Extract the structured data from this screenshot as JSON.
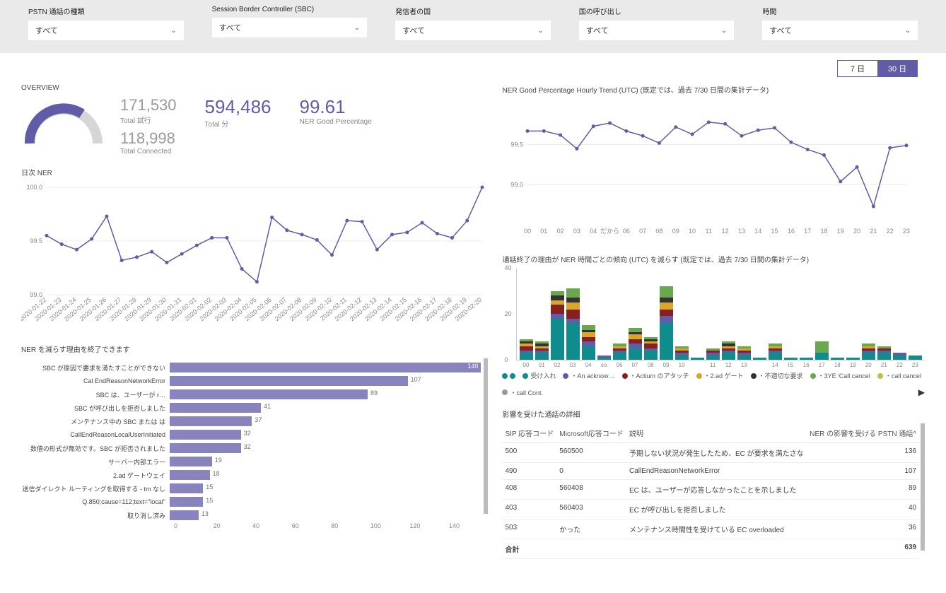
{
  "filters": [
    {
      "label": "PSTN 通話の種類",
      "value": "すべて"
    },
    {
      "label": "Session Border Controller (SBC)",
      "value": "すべて"
    },
    {
      "label": "発信者の国",
      "value": "すべて"
    },
    {
      "label": "国の呼び出し",
      "value": "すべて"
    },
    {
      "label": "時間",
      "value": "すべて"
    }
  ],
  "toggle": {
    "opt1": "7 日",
    "opt2": "30 日",
    "active": "30 日"
  },
  "overview": {
    "title": "OVERVIEW",
    "total_attempts": {
      "value": "171,530",
      "label": "Total 試行"
    },
    "total_connected": {
      "value": "118,998",
      "label": "Total Connected"
    },
    "total_min": {
      "value": "594,486",
      "label": "Total 分"
    },
    "ner_pct": {
      "value": "99.61",
      "label": "NER Good Percentage"
    },
    "gauge_pct": 0.69,
    "gauge_color": "#605ca8",
    "gauge_bg": "#d6d6d6"
  },
  "daily_ner": {
    "title": "日次 NER",
    "ylim": [
      99.0,
      100.0
    ],
    "yticks": [
      "99.0",
      "99.5",
      "100.0"
    ],
    "xlabels": [
      "2020-01-22",
      "2020-01-23",
      "2020-01-24",
      "2020-01-25",
      "2020-01-26",
      "2020-01-27",
      "2020-01-28",
      "2020-01-29",
      "2020-01-30",
      "2020-01-31",
      "2020-02-01",
      "2020-02-02",
      "2020-02-03",
      "2020-02-04",
      "2020-02-05",
      "2020-02-06",
      "2020-02-07",
      "2020-02-08",
      "2020-02-09",
      "2020-02-10",
      "2020-02-11",
      "2020-02-12",
      "2020-02-13",
      "2020-02-14",
      "2020-02-15",
      "2020-02-16",
      "2020-02-17",
      "2020-02-18",
      "2020-02-19",
      "2020-02-20"
    ],
    "values": [
      99.55,
      99.47,
      99.42,
      99.52,
      99.73,
      99.32,
      99.35,
      99.4,
      99.3,
      99.38,
      99.46,
      99.53,
      99.53,
      99.24,
      99.12,
      99.72,
      99.6,
      99.56,
      99.51,
      99.37,
      99.69,
      99.68,
      99.42,
      99.56,
      99.58,
      99.67,
      99.57,
      99.53,
      99.69,
      100.0
    ],
    "line_color": "#605ca8"
  },
  "hourly_ner": {
    "title": "NER Good Percentage Hourly Trend (UTC) (既定では、過去 7/30 日間の集計データ)",
    "ylim": [
      98.5,
      100.0
    ],
    "yticks": [
      "99.0",
      "99.5"
    ],
    "xlabels": [
      "00",
      "01",
      "02",
      "03",
      "04",
      "だから",
      "06",
      "07",
      "08",
      "09",
      "10",
      "11",
      "12",
      "13",
      "14",
      "15",
      "16",
      "17",
      "18",
      "19",
      "20",
      "21",
      "22",
      "23"
    ],
    "values": [
      99.67,
      99.67,
      99.62,
      99.45,
      99.73,
      99.77,
      99.67,
      99.61,
      99.52,
      99.72,
      99.63,
      99.78,
      99.76,
      99.61,
      99.68,
      99.71,
      99.53,
      99.44,
      99.37,
      99.04,
      99.22,
      98.73,
      99.46,
      99.49
    ],
    "line_color": "#605ca8"
  },
  "reduce_reasons": {
    "title": "NER を減らす理由を終了できます",
    "xmax": 140,
    "xticks": [
      "0",
      "20",
      "40",
      "60",
      "80",
      "100",
      "120",
      "140"
    ],
    "bar_color": "#605ca8",
    "rows": [
      {
        "label": "SBC が原因で要求を満たすことができない",
        "value": 140,
        "in_bar": true
      },
      {
        "label": "Cal EndReasonNetworkError",
        "value": 107
      },
      {
        "label": "SBC は、ユーザーが                 r…",
        "value": 89
      },
      {
        "label": "SBC が呼び出しを拒否しました",
        "value": 41
      },
      {
        "label": "メンテナンス中の SBC または は",
        "value": 37
      },
      {
        "label": "CallEndReasonLocalUserInitiated",
        "value": 32
      },
      {
        "label": "数値の形式が無効です。SBC が拒否されました",
        "value": 32
      },
      {
        "label": "サーバー内部エラー",
        "value": 19
      },
      {
        "label": "2.ad ゲートウェイ",
        "value": 18
      },
      {
        "label": "送信ダイレクト ルーティングを取得する - tm なし",
        "value": 15
      },
      {
        "label": "Q.850;cause=112;text=\"local\"",
        "value": 15
      },
      {
        "label": "取り消し済み",
        "value": 13
      }
    ]
  },
  "stacked": {
    "title": "通話終了の理由が NER 時間ごとの傾向 (UTC) を減らす (既定では、過去 7/30 日間の集計データ)",
    "ymax": 40,
    "yticks": [
      "0",
      "20",
      "40"
    ],
    "xlabels": [
      "00",
      "01",
      "02",
      "03",
      "04",
      "so",
      "06",
      "07",
      "08",
      "09",
      "10",
      "",
      "11",
      "12",
      "13",
      "",
      "14",
      "IS",
      "16",
      "17",
      "18",
      "19",
      "20",
      "21",
      "22",
      "23"
    ],
    "colors": {
      "accepted": "#0f8c8c",
      "ack": "#605ca8",
      "actium": "#8a1f1f",
      "adgate": "#d8a62c",
      "badreq": "#333333",
      "3ye": "#6aa84f",
      "callcancel": "#bfbf3f",
      "callcont": "#999999",
      "other": "#d16262"
    },
    "bars": [
      [
        3,
        1,
        2,
        1,
        1,
        1
      ],
      [
        3,
        1,
        1,
        1,
        1,
        1
      ],
      [
        18,
        2,
        4,
        2,
        2,
        2
      ],
      [
        16,
        2,
        4,
        3,
        2,
        4
      ],
      [
        6,
        2,
        2,
        2,
        1,
        2
      ],
      [
        1,
        1,
        0,
        0,
        0,
        0
      ],
      [
        3,
        1,
        1,
        1,
        0,
        1
      ],
      [
        5,
        2,
        2,
        2,
        1,
        2
      ],
      [
        4,
        1,
        2,
        1,
        1,
        1
      ],
      [
        16,
        3,
        3,
        3,
        2,
        5
      ],
      [
        2,
        1,
        1,
        1,
        0,
        1
      ],
      [
        1,
        0,
        0,
        0,
        0,
        0
      ],
      [
        2,
        1,
        1,
        0,
        0,
        1
      ],
      [
        3,
        1,
        1,
        1,
        1,
        1
      ],
      [
        2,
        1,
        1,
        1,
        0,
        1
      ],
      [
        1,
        0,
        0,
        0,
        0,
        0
      ],
      [
        3,
        1,
        1,
        1,
        0,
        1
      ],
      [
        1,
        0,
        0,
        0,
        0,
        0
      ],
      [
        1,
        0,
        0,
        0,
        0,
        0
      ],
      [
        3,
        0,
        0,
        0,
        0,
        5
      ],
      [
        1,
        0,
        0,
        0,
        0,
        0
      ],
      [
        1,
        0,
        0,
        0,
        0,
        0
      ],
      [
        3,
        1,
        1,
        1,
        0,
        1
      ],
      [
        3,
        1,
        1,
        0,
        0,
        1
      ],
      [
        2,
        1,
        0,
        0,
        0,
        0
      ],
      [
        2,
        0,
        0,
        0,
        0,
        0
      ]
    ],
    "legend": [
      {
        "label": "受け入れ",
        "color": "#0f8c8c"
      },
      {
        "label": "An acknow…",
        "color": "#605ca8"
      },
      {
        "label": "Actium のアタッチ",
        "color": "#8a1f1f"
      },
      {
        "label": "2.ad ゲート",
        "color": "#d8a62c"
      },
      {
        "label": "不適切な要求",
        "color": "#333333"
      },
      {
        "label": "3YE 'Call cancel",
        "color": "#6aa84f"
      },
      {
        "label": "call cancel",
        "color": "#bfbf3f"
      },
      {
        "label": "call Cont.",
        "color": "#999999"
      }
    ]
  },
  "table": {
    "title": "影響を受けた通話の詳細",
    "headers": [
      "SIP 応答コード",
      "Microsoft応答コード",
      "説明",
      "NER の影響を受ける PSTN 通話^"
    ],
    "rows": [
      [
        "500",
        "560500",
        "予期しない状況が発生したため、EC が要求を満たさな",
        "136"
      ],
      [
        "490",
        "0",
        "CallEndReasonNetworkError",
        "107"
      ],
      [
        "408",
        "560408",
        "EC は、ユーザーが応答しなかったことを示しました",
        "89"
      ],
      [
        "403",
        "560403",
        "EC が呼び出しを拒否しました",
        "40"
      ],
      [
        "503",
        "かった",
        "メンテナンス時間性を受けている EC overloaded",
        "36"
      ]
    ],
    "footer": [
      "合計",
      "",
      "",
      "639"
    ]
  }
}
